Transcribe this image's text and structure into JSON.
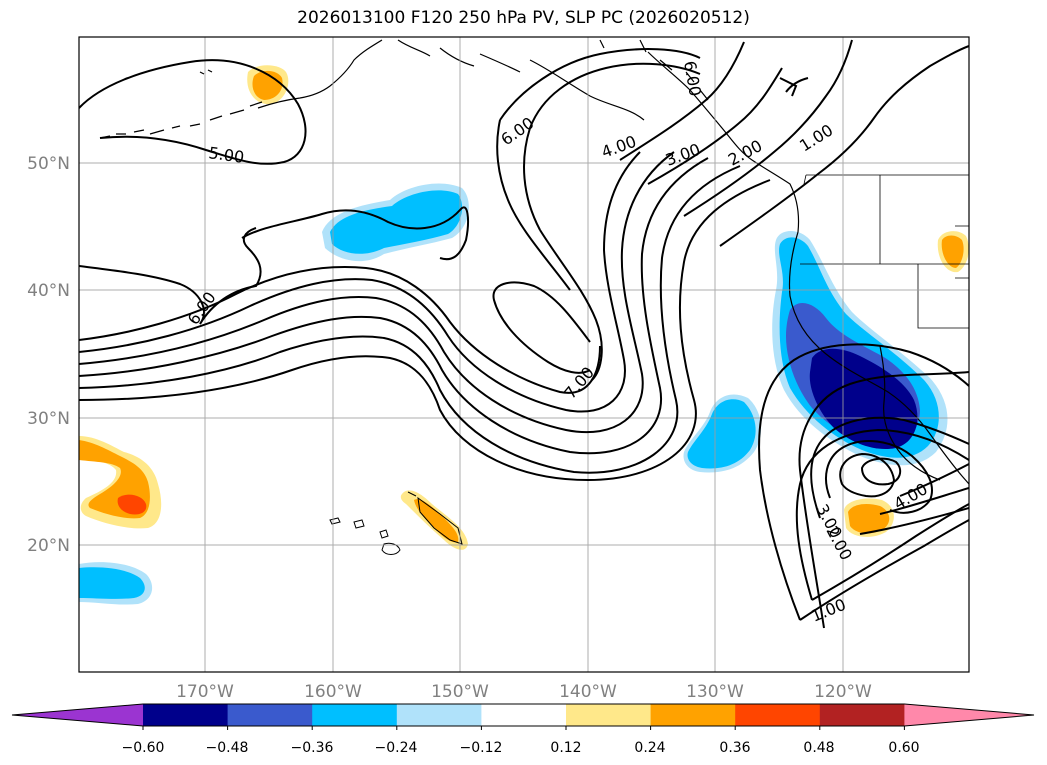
{
  "title": "2026013100 F120 250 hPa PV, SLP PC (2026020512)",
  "map": {
    "lon_labels": [
      "170°W",
      "160°W",
      "150°W",
      "140°W",
      "130°W",
      "120°W"
    ],
    "lat_labels": [
      "50°N",
      "40°N",
      "30°N",
      "20°N"
    ],
    "grid": true
  },
  "contour_labels": [
    "5.00",
    "6.00",
    "6.00",
    "7.00",
    "6.00",
    "4.00",
    "3.00",
    "2.00",
    "1.00",
    "4.00",
    "3.00",
    "2.00",
    "1.00"
  ],
  "colorbar": {
    "tick_labels": [
      "−0.60",
      "−0.48",
      "−0.36",
      "−0.24",
      "−0.12",
      "0.12",
      "0.24",
      "0.36",
      "0.48",
      "0.60"
    ],
    "colors": [
      "#9b34d1",
      "#00008b",
      "#3a5acd",
      "#00bfff",
      "#b0e2fa",
      "#ffffff",
      "#ffe88a",
      "#ffa200",
      "#ff4500",
      "#b22222",
      "#ff88aa"
    ]
  }
}
